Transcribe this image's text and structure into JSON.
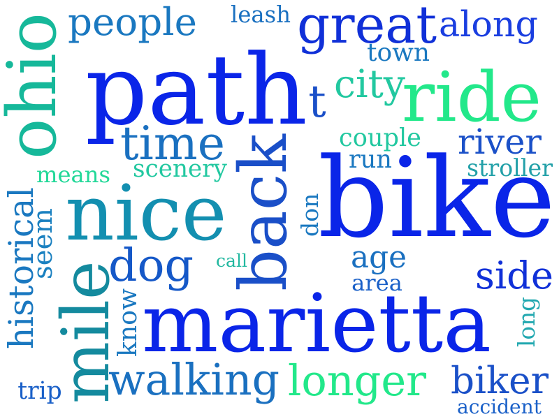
{
  "words": [
    {
      "text": "bike",
      "color": "#0a25e8",
      "orientation": "horizontal"
    },
    {
      "text": "path",
      "color": "#0a25e8",
      "orientation": "horizontal"
    },
    {
      "text": "marietta",
      "color": "#0a25e8",
      "orientation": "horizontal"
    },
    {
      "text": "nice",
      "color": "#138fb0",
      "orientation": "horizontal"
    },
    {
      "text": "back",
      "color": "#1a4fc8",
      "orientation": "vertical"
    },
    {
      "text": "mile",
      "color": "#148a9e",
      "orientation": "vertical"
    },
    {
      "text": "ride",
      "color": "#22e88a",
      "orientation": "horizontal"
    },
    {
      "text": "great",
      "color": "#1030d8",
      "orientation": "horizontal"
    },
    {
      "text": "ohio",
      "color": "#16b89a",
      "orientation": "vertical"
    },
    {
      "text": "longer",
      "color": "#22e88a",
      "orientation": "horizontal"
    },
    {
      "text": "walking",
      "color": "#1a70c0",
      "orientation": "horizontal"
    },
    {
      "text": "time",
      "color": "#1a70c0",
      "orientation": "horizontal"
    },
    {
      "text": "dog",
      "color": "#1558c8",
      "orientation": "horizontal"
    },
    {
      "text": "people",
      "color": "#1a78c0",
      "orientation": "horizontal"
    },
    {
      "text": "side",
      "color": "#1030d8",
      "orientation": "horizontal"
    },
    {
      "text": "biker",
      "color": "#1a50c8",
      "orientation": "horizontal"
    },
    {
      "text": "river",
      "color": "#1a50c8",
      "orientation": "horizontal"
    },
    {
      "text": "along",
      "color": "#1a3ee0",
      "orientation": "horizontal"
    },
    {
      "text": "t",
      "color": "#1a4fc8",
      "orientation": "horizontal"
    },
    {
      "text": "age",
      "color": "#1a70c0",
      "orientation": "horizontal"
    },
    {
      "text": "city",
      "color": "#22c8a0",
      "orientation": "horizontal"
    },
    {
      "text": "historical",
      "color": "#1a78c0",
      "orientation": "vertical"
    },
    {
      "text": "couple",
      "color": "#22c8a0",
      "orientation": "horizontal"
    },
    {
      "text": "scenery",
      "color": "#22c8a0",
      "orientation": "horizontal"
    },
    {
      "text": "stroller",
      "color": "#22a0a8",
      "orientation": "horizontal"
    },
    {
      "text": "leash",
      "color": "#1a70c0",
      "orientation": "horizontal"
    },
    {
      "text": "town",
      "color": "#1a78c0",
      "orientation": "horizontal"
    },
    {
      "text": "run",
      "color": "#1a78c0",
      "orientation": "horizontal"
    },
    {
      "text": "means",
      "color": "#22d898",
      "orientation": "horizontal"
    },
    {
      "text": "seem",
      "color": "#1a80c0",
      "orientation": "vertical"
    },
    {
      "text": "don",
      "color": "#1a78c0",
      "orientation": "vertical"
    },
    {
      "text": "call",
      "color": "#22b8a0",
      "orientation": "horizontal"
    },
    {
      "text": "area",
      "color": "#1a60c8",
      "orientation": "horizontal"
    },
    {
      "text": "know",
      "color": "#1a78c0",
      "orientation": "vertical"
    },
    {
      "text": "long",
      "color": "#22a8b0",
      "orientation": "vertical"
    },
    {
      "text": "trip",
      "color": "#1a60c8",
      "orientation": "horizontal"
    },
    {
      "text": "accident",
      "color": "#1a60c8",
      "orientation": "horizontal"
    }
  ]
}
